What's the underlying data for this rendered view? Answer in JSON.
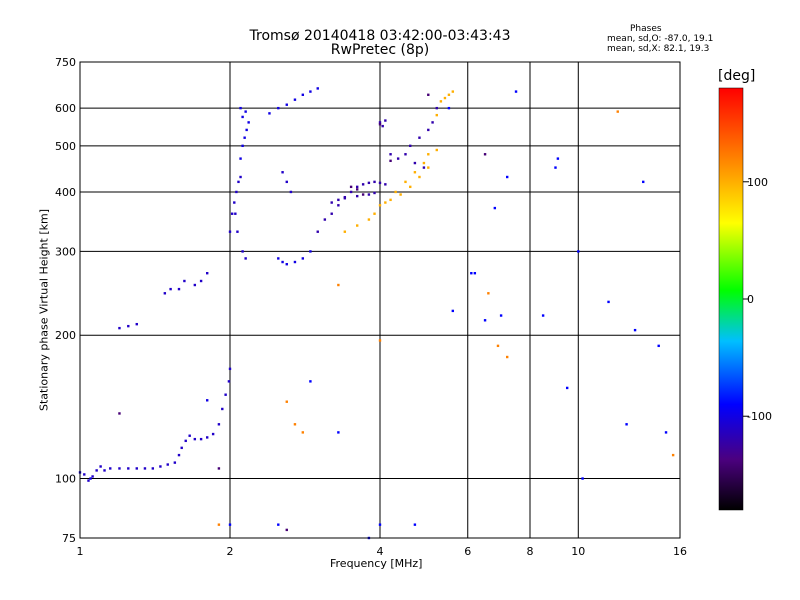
{
  "header": {
    "title_line1": "Tromsø 20140418 03:42:00-03:43:43",
    "title_line2": "RwPretec (8p)",
    "stats_title": "Phases",
    "stats_o": "mean, sd,O: -87.0, 19.1",
    "stats_x": "mean, sd,X:  82.1, 19.3"
  },
  "chart_data": {
    "type": "scatter",
    "xlabel": "Frequency [MHz]",
    "ylabel": "Stationary phase Virtual Height [km]",
    "xscale": "log",
    "yscale": "log",
    "xlim": [
      1,
      16
    ],
    "ylim": [
      75,
      750
    ],
    "xticks": [
      1,
      2,
      4,
      6,
      8,
      10,
      16
    ],
    "xtick_labels": [
      "1",
      "2",
      "4",
      "6",
      "8",
      "10",
      "16"
    ],
    "yticks": [
      75,
      100,
      200,
      300,
      400,
      500,
      600,
      750
    ],
    "ytick_labels": [
      "75",
      "100",
      "200",
      "300",
      "400",
      "500",
      "600",
      "750"
    ],
    "grid": true,
    "colorbar": {
      "label": "[deg]",
      "range": [
        -180,
        180
      ],
      "ticks": [
        100,
        0,
        -100
      ],
      "tick_labels": [
        "100",
        "0",
        "-100"
      ]
    },
    "series": [
      {
        "phase": -110,
        "points": [
          [
            1.02,
            102
          ],
          [
            1.04,
            99
          ],
          [
            1.06,
            101
          ],
          [
            1.08,
            104
          ],
          [
            1.1,
            106
          ],
          [
            1.12,
            104
          ],
          [
            1.15,
            105
          ],
          [
            1.2,
            105
          ],
          [
            1.25,
            105
          ],
          [
            1.3,
            105
          ],
          [
            1.35,
            105
          ],
          [
            1.4,
            105
          ],
          [
            1.45,
            106
          ],
          [
            1.5,
            107
          ],
          [
            1.55,
            108
          ],
          [
            1.58,
            112
          ],
          [
            1.6,
            116
          ],
          [
            1.63,
            120
          ],
          [
            1.66,
            123
          ],
          [
            1.7,
            121
          ],
          [
            1.75,
            121
          ],
          [
            1.8,
            122
          ],
          [
            1.85,
            124
          ],
          [
            1.9,
            130
          ],
          [
            1.93,
            140
          ],
          [
            1.96,
            150
          ],
          [
            1.99,
            160
          ],
          [
            2.0,
            170
          ],
          [
            1.2,
            207
          ],
          [
            1.25,
            209
          ],
          [
            1.3,
            211
          ],
          [
            1.48,
            245
          ],
          [
            1.52,
            250
          ],
          [
            1.58,
            250
          ],
          [
            1.62,
            260
          ],
          [
            1.7,
            255
          ],
          [
            1.75,
            260
          ],
          [
            1.8,
            270
          ],
          [
            2.0,
            330
          ],
          [
            2.02,
            360
          ],
          [
            2.04,
            380
          ],
          [
            2.06,
            400
          ],
          [
            2.08,
            420
          ],
          [
            2.1,
            430
          ],
          [
            2.05,
            360
          ],
          [
            2.07,
            330
          ],
          [
            2.12,
            300
          ],
          [
            2.15,
            290
          ],
          [
            2.55,
            440
          ],
          [
            2.6,
            420
          ],
          [
            2.65,
            400
          ]
        ]
      },
      {
        "phase": -100,
        "points": [
          [
            2.1,
            470
          ],
          [
            2.12,
            500
          ],
          [
            2.14,
            520
          ],
          [
            2.16,
            540
          ],
          [
            2.18,
            560
          ],
          [
            2.1,
            600
          ],
          [
            2.12,
            575
          ],
          [
            2.5,
            290
          ],
          [
            2.55,
            285
          ],
          [
            2.6,
            282
          ],
          [
            2.7,
            285
          ],
          [
            2.8,
            290
          ],
          [
            2.9,
            300
          ],
          [
            2.4,
            585
          ],
          [
            2.5,
            600
          ],
          [
            2.6,
            610
          ],
          [
            2.7,
            625
          ],
          [
            2.8,
            640
          ],
          [
            2.9,
            650
          ],
          [
            3.0,
            660
          ],
          [
            2.15,
            590
          ],
          [
            1.0,
            103
          ],
          [
            1.05,
            100
          ],
          [
            1.8,
            146
          ]
        ]
      },
      {
        "phase": -120,
        "points": [
          [
            3.0,
            330
          ],
          [
            3.1,
            350
          ],
          [
            3.2,
            360
          ],
          [
            3.3,
            375
          ],
          [
            3.4,
            390
          ],
          [
            3.5,
            400
          ],
          [
            3.6,
            410
          ],
          [
            3.7,
            415
          ],
          [
            3.8,
            418
          ],
          [
            3.9,
            420
          ],
          [
            4.0,
            418
          ],
          [
            4.1,
            415
          ],
          [
            3.2,
            380
          ],
          [
            3.3,
            385
          ],
          [
            3.4,
            388
          ],
          [
            3.6,
            392
          ],
          [
            3.8,
            395
          ],
          [
            3.9,
            398
          ],
          [
            4.0,
            560
          ],
          [
            4.05,
            550
          ],
          [
            4.1,
            565
          ],
          [
            4.2,
            480
          ],
          [
            4.35,
            470
          ],
          [
            4.5,
            480
          ],
          [
            4.6,
            500
          ],
          [
            4.8,
            520
          ],
          [
            5.0,
            540
          ],
          [
            5.1,
            560
          ],
          [
            5.2,
            600
          ],
          [
            4.9,
            450
          ],
          [
            4.7,
            460
          ]
        ]
      },
      {
        "phase": 100,
        "points": [
          [
            3.4,
            330
          ],
          [
            3.6,
            340
          ],
          [
            3.8,
            350
          ],
          [
            3.9,
            360
          ],
          [
            4.0,
            375
          ],
          [
            4.1,
            380
          ],
          [
            4.2,
            385
          ],
          [
            4.4,
            395
          ],
          [
            4.6,
            410
          ],
          [
            4.8,
            430
          ],
          [
            5.0,
            450
          ],
          [
            5.2,
            490
          ],
          [
            4.3,
            400
          ],
          [
            4.5,
            420
          ],
          [
            4.7,
            440
          ],
          [
            4.9,
            460
          ],
          [
            5.0,
            480
          ],
          [
            5.3,
            620
          ],
          [
            5.4,
            630
          ],
          [
            5.5,
            640
          ],
          [
            5.6,
            650
          ],
          [
            5.2,
            580
          ]
        ]
      },
      {
        "phase": -140,
        "points": [
          [
            1.2,
            137
          ],
          [
            1.9,
            105
          ],
          [
            2.6,
            78
          ],
          [
            3.5,
            410
          ],
          [
            3.6,
            405
          ],
          [
            3.7,
            395
          ],
          [
            4.0,
            555
          ],
          [
            4.2,
            465
          ],
          [
            5.0,
            640
          ],
          [
            6.5,
            480
          ]
        ]
      },
      {
        "phase": 120,
        "points": [
          [
            2.8,
            125
          ],
          [
            3.3,
            255
          ],
          [
            4.0,
            195
          ],
          [
            6.6,
            245
          ],
          [
            6.9,
            190
          ],
          [
            7.2,
            180
          ],
          [
            12.0,
            590
          ],
          [
            15.5,
            112
          ],
          [
            2.7,
            130
          ],
          [
            1.9,
            80
          ],
          [
            2.6,
            145
          ]
        ]
      },
      {
        "phase": -90,
        "points": [
          [
            2.0,
            80
          ],
          [
            2.5,
            80
          ],
          [
            2.9,
            160
          ],
          [
            3.3,
            125
          ],
          [
            3.8,
            75
          ],
          [
            4.0,
            80
          ],
          [
            4.7,
            80
          ],
          [
            5.6,
            225
          ],
          [
            6.2,
            270
          ],
          [
            6.5,
            215
          ],
          [
            7.0,
            220
          ],
          [
            7.2,
            430
          ],
          [
            7.5,
            650
          ],
          [
            9.0,
            450
          ],
          [
            9.1,
            470
          ],
          [
            10.0,
            300
          ],
          [
            10.2,
            100
          ],
          [
            11.5,
            235
          ],
          [
            13.0,
            205
          ],
          [
            14.5,
            190
          ],
          [
            15.0,
            125
          ],
          [
            12.5,
            130
          ],
          [
            9.5,
            155
          ],
          [
            13.5,
            420
          ],
          [
            6.1,
            270
          ],
          [
            5.5,
            600
          ],
          [
            6.8,
            370
          ],
          [
            8.5,
            220
          ]
        ]
      }
    ]
  }
}
